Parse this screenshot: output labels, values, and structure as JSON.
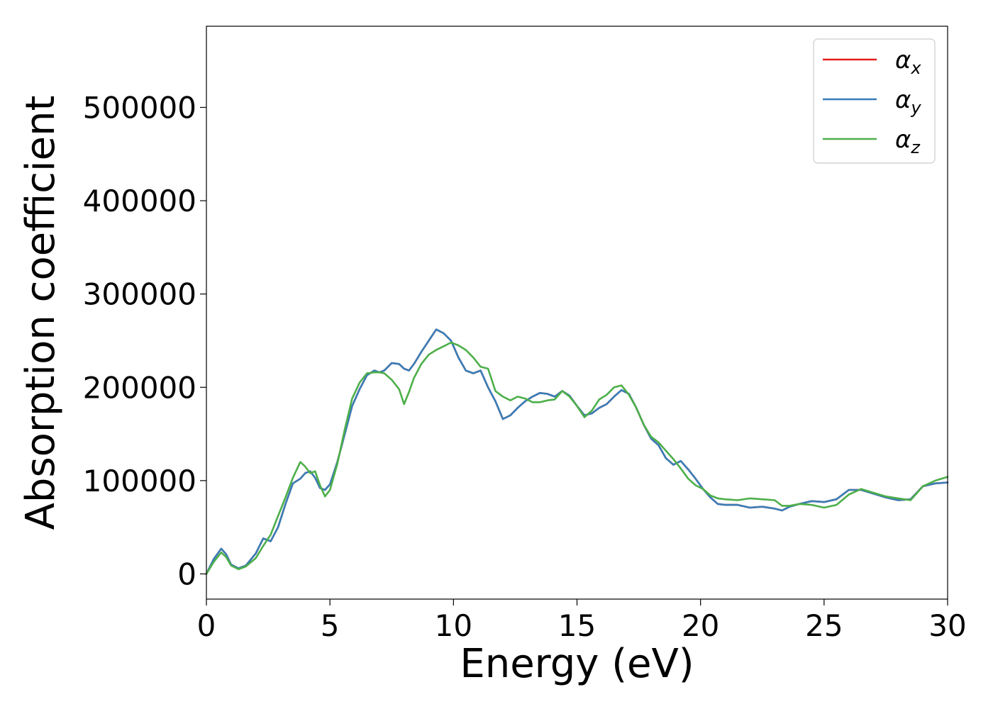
{
  "chart_data": {
    "type": "line",
    "title": "",
    "xlabel": "Energy (eV)",
    "ylabel": "Absorption coefficient",
    "xlim": [
      0,
      30
    ],
    "ylim": [
      -27000,
      587000
    ],
    "xticks": [
      0,
      5,
      10,
      15,
      20,
      25,
      30
    ],
    "yticks": [
      0,
      100000,
      200000,
      300000,
      400000,
      500000
    ],
    "grid": false,
    "legend_position": "top-right",
    "series": [
      {
        "name": "α_x",
        "legend_base": "α",
        "legend_sub": "x",
        "color": "#e41a1c",
        "x": [
          0,
          0.3,
          0.6,
          0.8,
          1.0,
          1.3,
          1.6,
          2.0,
          2.3,
          2.6,
          2.9,
          3.2,
          3.5,
          3.8,
          4.0,
          4.2,
          4.4,
          4.6,
          4.8,
          5.0,
          5.3,
          5.6,
          5.9,
          6.2,
          6.5,
          6.8,
          7.0,
          7.2,
          7.5,
          7.8,
          8.0,
          8.2,
          8.4,
          8.7,
          9.0,
          9.3,
          9.6,
          9.9,
          10.2,
          10.5,
          10.8,
          11.1,
          11.4,
          11.7,
          12.0,
          12.3,
          12.6,
          12.9,
          13.2,
          13.5,
          13.8,
          14.1,
          14.4,
          14.7,
          15.0,
          15.3,
          15.6,
          15.9,
          16.2,
          16.5,
          16.8,
          17.1,
          17.4,
          17.7,
          18.0,
          18.3,
          18.6,
          18.9,
          19.2,
          19.5,
          19.8,
          20.1,
          20.4,
          20.7,
          21.0,
          21.5,
          22.0,
          22.5,
          23.0,
          23.3,
          23.6,
          24.0,
          24.5,
          25.0,
          25.5,
          26.0,
          26.5,
          27.0,
          27.5,
          28.0,
          28.5,
          29.0,
          29.5,
          30.0
        ],
        "y": [
          0,
          16000,
          27000,
          21000,
          10000,
          6000,
          9000,
          22000,
          38000,
          35000,
          50000,
          75000,
          97000,
          102000,
          108000,
          110000,
          103000,
          92000,
          90000,
          96000,
          120000,
          150000,
          180000,
          198000,
          213000,
          218000,
          216000,
          218000,
          226000,
          225000,
          220000,
          218000,
          225000,
          238000,
          250000,
          262000,
          258000,
          250000,
          232000,
          218000,
          215000,
          218000,
          200000,
          185000,
          166000,
          170000,
          178000,
          185000,
          190000,
          194000,
          193000,
          190000,
          196000,
          191000,
          180000,
          170000,
          172000,
          178000,
          182000,
          190000,
          197000,
          193000,
          178000,
          160000,
          145000,
          138000,
          124000,
          117000,
          121000,
          112000,
          102000,
          91000,
          82000,
          75000,
          74000,
          74000,
          71000,
          72000,
          70000,
          68000,
          72000,
          75000,
          78000,
          77000,
          80000,
          90000,
          90000,
          86000,
          82000,
          79000,
          80000,
          94000,
          97000,
          98000
        ]
      },
      {
        "name": "α_y",
        "legend_base": "α",
        "legend_sub": "y",
        "color": "#377eb8",
        "x": [
          0,
          0.3,
          0.6,
          0.8,
          1.0,
          1.3,
          1.6,
          2.0,
          2.3,
          2.6,
          2.9,
          3.2,
          3.5,
          3.8,
          4.0,
          4.2,
          4.4,
          4.6,
          4.8,
          5.0,
          5.3,
          5.6,
          5.9,
          6.2,
          6.5,
          6.8,
          7.0,
          7.2,
          7.5,
          7.8,
          8.0,
          8.2,
          8.4,
          8.7,
          9.0,
          9.3,
          9.6,
          9.9,
          10.2,
          10.5,
          10.8,
          11.1,
          11.4,
          11.7,
          12.0,
          12.3,
          12.6,
          12.9,
          13.2,
          13.5,
          13.8,
          14.1,
          14.4,
          14.7,
          15.0,
          15.3,
          15.6,
          15.9,
          16.2,
          16.5,
          16.8,
          17.1,
          17.4,
          17.7,
          18.0,
          18.3,
          18.6,
          18.9,
          19.2,
          19.5,
          19.8,
          20.1,
          20.4,
          20.7,
          21.0,
          21.5,
          22.0,
          22.5,
          23.0,
          23.3,
          23.6,
          24.0,
          24.5,
          25.0,
          25.5,
          26.0,
          26.5,
          27.0,
          27.5,
          28.0,
          28.5,
          29.0,
          29.5,
          30.0
        ],
        "y": [
          0,
          16000,
          27000,
          21000,
          10000,
          6000,
          9000,
          22000,
          38000,
          35000,
          50000,
          75000,
          97000,
          102000,
          108000,
          110000,
          103000,
          92000,
          90000,
          96000,
          120000,
          150000,
          180000,
          198000,
          213000,
          218000,
          216000,
          218000,
          226000,
          225000,
          220000,
          218000,
          225000,
          238000,
          250000,
          262000,
          258000,
          250000,
          232000,
          218000,
          215000,
          218000,
          200000,
          185000,
          166000,
          170000,
          178000,
          185000,
          190000,
          194000,
          193000,
          190000,
          196000,
          191000,
          180000,
          170000,
          172000,
          178000,
          182000,
          190000,
          197000,
          193000,
          178000,
          160000,
          145000,
          138000,
          124000,
          117000,
          121000,
          112000,
          102000,
          91000,
          82000,
          75000,
          74000,
          74000,
          71000,
          72000,
          70000,
          68000,
          72000,
          75000,
          78000,
          77000,
          80000,
          90000,
          90000,
          86000,
          82000,
          79000,
          80000,
          94000,
          97000,
          98000
        ]
      },
      {
        "name": "α_z",
        "legend_base": "α",
        "legend_sub": "z",
        "color": "#4daf4a",
        "x": [
          0,
          0.3,
          0.6,
          0.8,
          1.0,
          1.3,
          1.6,
          2.0,
          2.3,
          2.6,
          2.9,
          3.2,
          3.5,
          3.8,
          4.0,
          4.2,
          4.4,
          4.6,
          4.8,
          5.0,
          5.3,
          5.6,
          5.9,
          6.2,
          6.5,
          6.8,
          7.0,
          7.2,
          7.5,
          7.8,
          8.0,
          8.2,
          8.4,
          8.7,
          9.0,
          9.3,
          9.6,
          9.9,
          10.2,
          10.5,
          10.8,
          11.1,
          11.4,
          11.7,
          12.0,
          12.3,
          12.6,
          12.9,
          13.2,
          13.5,
          13.8,
          14.1,
          14.4,
          14.7,
          15.0,
          15.3,
          15.6,
          15.9,
          16.2,
          16.5,
          16.8,
          17.1,
          17.4,
          17.7,
          18.0,
          18.3,
          18.6,
          18.9,
          19.2,
          19.5,
          19.8,
          20.1,
          20.4,
          20.7,
          21.0,
          21.5,
          22.0,
          22.5,
          23.0,
          23.3,
          23.6,
          24.0,
          24.5,
          25.0,
          25.5,
          26.0,
          26.5,
          27.0,
          27.5,
          28.0,
          28.5,
          29.0,
          29.5,
          30.0
        ],
        "y": [
          0,
          13000,
          23000,
          18000,
          9000,
          5000,
          8000,
          17000,
          30000,
          42000,
          62000,
          82000,
          103000,
          120000,
          115000,
          108000,
          110000,
          95000,
          83000,
          90000,
          118000,
          155000,
          188000,
          205000,
          215000,
          216000,
          216000,
          215000,
          208000,
          198000,
          182000,
          195000,
          210000,
          225000,
          235000,
          240000,
          244000,
          248000,
          245000,
          240000,
          232000,
          222000,
          220000,
          196000,
          190000,
          186000,
          190000,
          188000,
          184000,
          184000,
          186000,
          187000,
          196000,
          190000,
          180000,
          168000,
          175000,
          187000,
          192000,
          200000,
          202000,
          192000,
          178000,
          160000,
          147000,
          141000,
          132000,
          123000,
          113000,
          102000,
          95000,
          91000,
          84000,
          81000,
          80000,
          79000,
          81000,
          80000,
          79000,
          73000,
          73000,
          75000,
          74000,
          71000,
          74000,
          85000,
          91000,
          87000,
          83000,
          81000,
          79000,
          94000,
          100000,
          104000
        ]
      }
    ]
  }
}
